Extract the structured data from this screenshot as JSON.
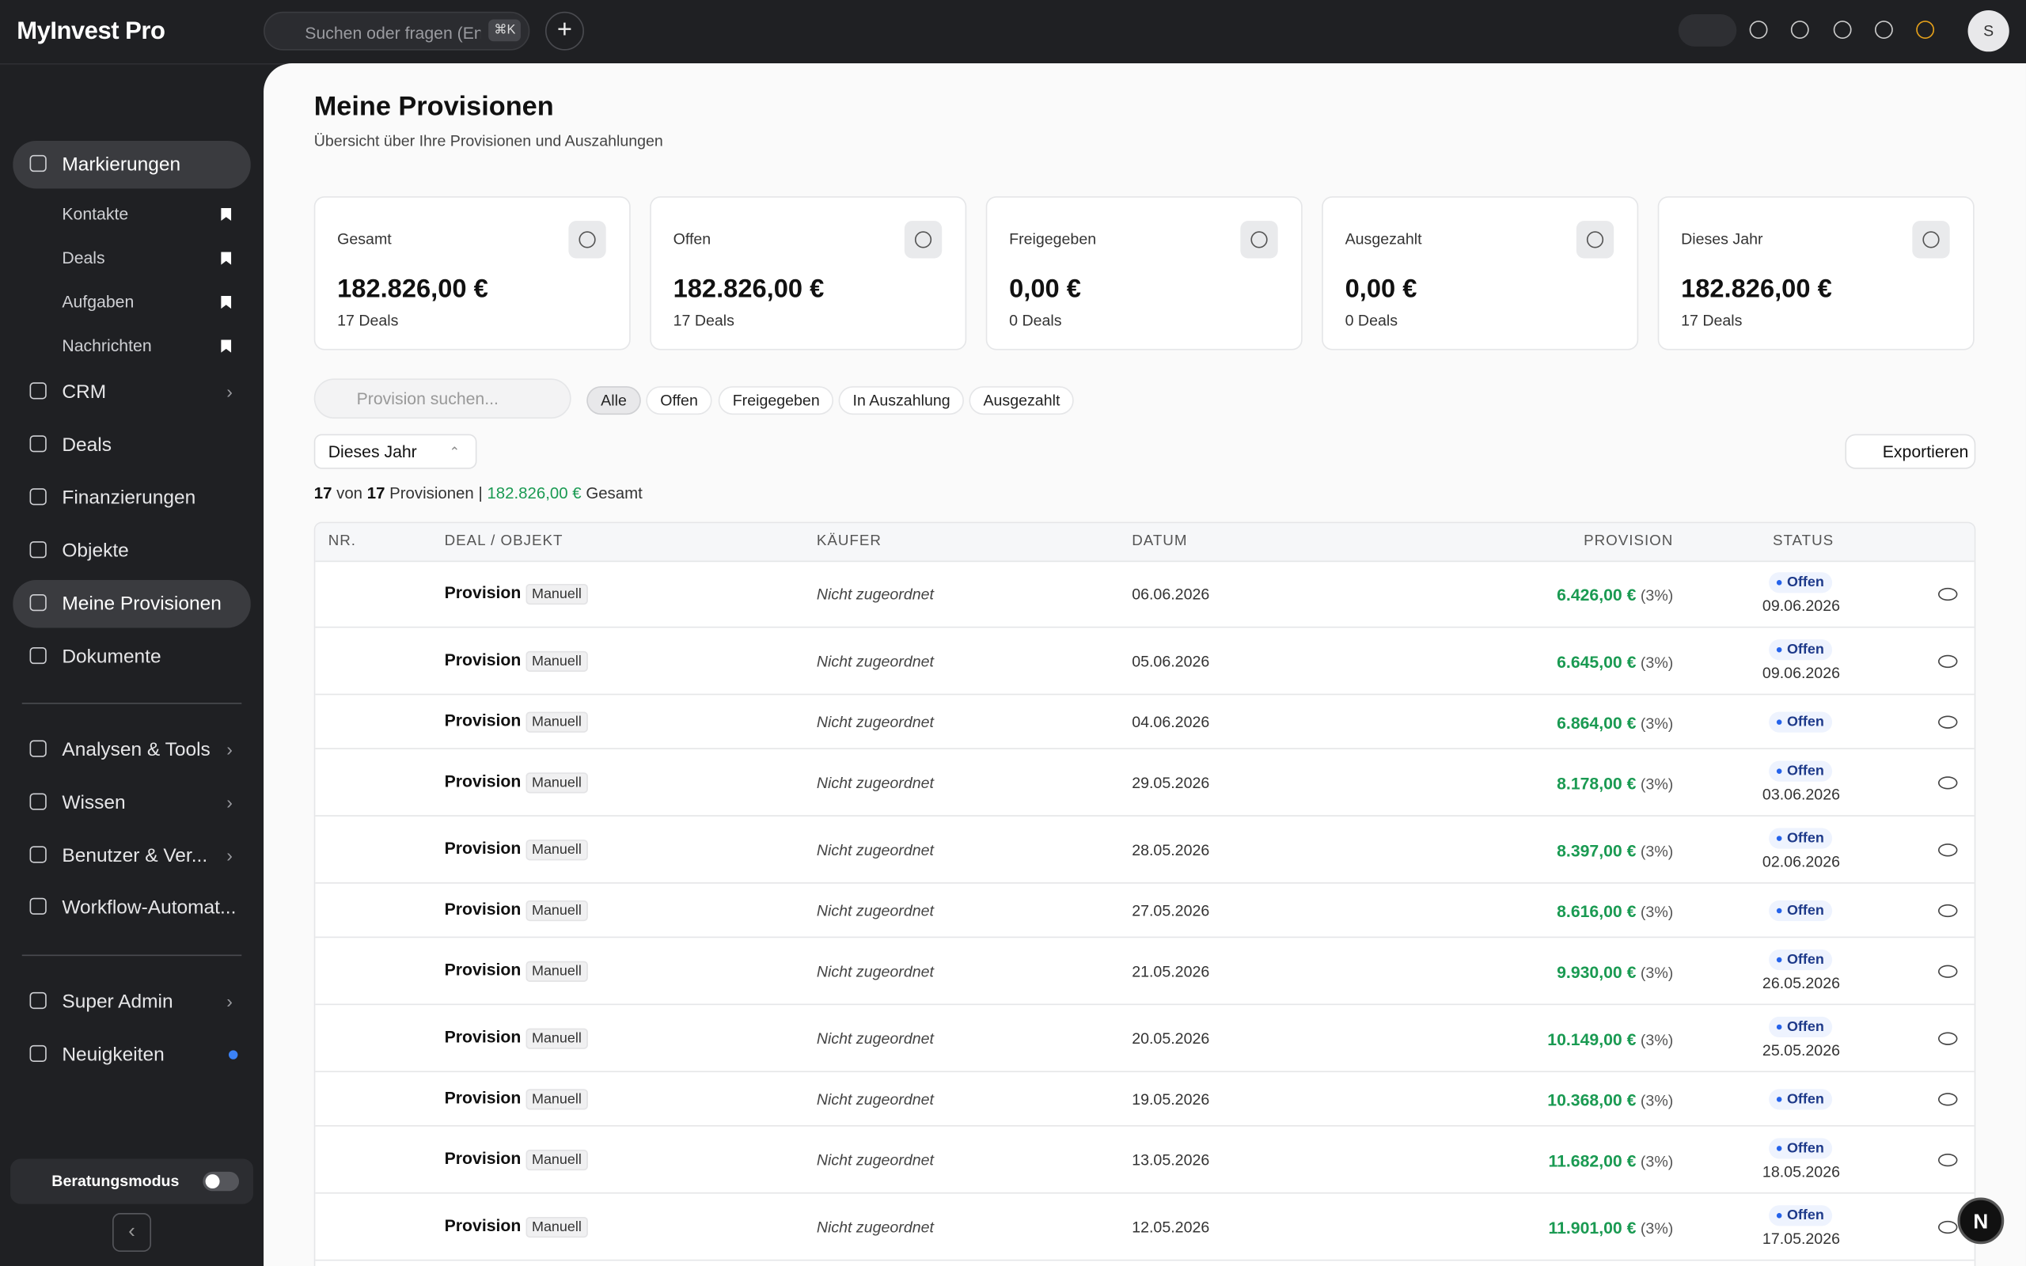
{
  "header": {
    "logo": "MyInvest Pro",
    "search_placeholder": "Suchen oder fragen (Ent",
    "shortcut": "⌘K",
    "avatar": "S"
  },
  "sidebar": {
    "items": [
      {
        "label": "Markierungen",
        "active": true
      },
      {
        "label": "Kontakte",
        "sub": true
      },
      {
        "label": "Deals",
        "sub": true
      },
      {
        "label": "Aufgaben",
        "sub": true
      },
      {
        "label": "Nachrichten",
        "sub": true
      },
      {
        "label": "CRM",
        "chevron": true
      },
      {
        "label": "Deals"
      },
      {
        "label": "Finanzierungen"
      },
      {
        "label": "Objekte"
      },
      {
        "label": "Meine Provisionen",
        "active": true
      },
      {
        "label": "Dokumente"
      },
      {
        "label": "Analysen & Tools",
        "chevron": true
      },
      {
        "label": "Wissen",
        "chevron": true
      },
      {
        "label": "Benutzer & Ver...",
        "chevron": true
      },
      {
        "label": "Workflow-Automat..."
      },
      {
        "label": "Super Admin",
        "chevron": true
      },
      {
        "label": "Neuigkeiten",
        "dot": true
      }
    ],
    "mode_label": "Beratungsmodus"
  },
  "page": {
    "title": "Meine Provisionen",
    "subtitle": "Übersicht über Ihre Provisionen und Auszahlungen"
  },
  "stats": [
    {
      "label": "Gesamt",
      "value": "182.826,00 €",
      "sub": "17 Deals"
    },
    {
      "label": "Offen",
      "value": "182.826,00 €",
      "sub": "17 Deals"
    },
    {
      "label": "Freigegeben",
      "value": "0,00 €",
      "sub": "0 Deals"
    },
    {
      "label": "Ausgezahlt",
      "value": "0,00 €",
      "sub": "0 Deals"
    },
    {
      "label": "Dieses Jahr",
      "value": "182.826,00 €",
      "sub": "17 Deals"
    }
  ],
  "filters": {
    "search_placeholder": "Provision suchen...",
    "chips": [
      "Alle",
      "Offen",
      "Freigegeben",
      "In Auszahlung",
      "Ausgezahlt"
    ],
    "period": "Dieses Jahr",
    "export": "Exportieren"
  },
  "summary": {
    "count": "17",
    "of": "von",
    "total": "17",
    "unit": "Provisionen",
    "sep": "|",
    "sum": "182.826,00 €",
    "sum_label": "Gesamt"
  },
  "table": {
    "columns": [
      "NR.",
      "DEAL / OBJEKT",
      "KÄUFER",
      "DATUM",
      "PROVISION",
      "STATUS"
    ],
    "rows": [
      {
        "deal": "Provision",
        "tag": "Manuell",
        "buyer": "Nicht zugeordnet",
        "date": "06.06.2026",
        "amount": "6.426,00 €",
        "pct": "(3%)",
        "status": "Offen",
        "status_date": "09.06.2026"
      },
      {
        "deal": "Provision",
        "tag": "Manuell",
        "buyer": "Nicht zugeordnet",
        "date": "05.06.2026",
        "amount": "6.645,00 €",
        "pct": "(3%)",
        "status": "Offen",
        "status_date": "09.06.2026"
      },
      {
        "deal": "Provision",
        "tag": "Manuell",
        "buyer": "Nicht zugeordnet",
        "date": "04.06.2026",
        "amount": "6.864,00 €",
        "pct": "(3%)",
        "status": "Offen"
      },
      {
        "deal": "Provision",
        "tag": "Manuell",
        "buyer": "Nicht zugeordnet",
        "date": "29.05.2026",
        "amount": "8.178,00 €",
        "pct": "(3%)",
        "status": "Offen",
        "status_date": "03.06.2026"
      },
      {
        "deal": "Provision",
        "tag": "Manuell",
        "buyer": "Nicht zugeordnet",
        "date": "28.05.2026",
        "amount": "8.397,00 €",
        "pct": "(3%)",
        "status": "Offen",
        "status_date": "02.06.2026"
      },
      {
        "deal": "Provision",
        "tag": "Manuell",
        "buyer": "Nicht zugeordnet",
        "date": "27.05.2026",
        "amount": "8.616,00 €",
        "pct": "(3%)",
        "status": "Offen"
      },
      {
        "deal": "Provision",
        "tag": "Manuell",
        "buyer": "Nicht zugeordnet",
        "date": "21.05.2026",
        "amount": "9.930,00 €",
        "pct": "(3%)",
        "status": "Offen",
        "status_date": "26.05.2026"
      },
      {
        "deal": "Provision",
        "tag": "Manuell",
        "buyer": "Nicht zugeordnet",
        "date": "20.05.2026",
        "amount": "10.149,00 €",
        "pct": "(3%)",
        "status": "Offen",
        "status_date": "25.05.2026"
      },
      {
        "deal": "Provision",
        "tag": "Manuell",
        "buyer": "Nicht zugeordnet",
        "date": "19.05.2026",
        "amount": "10.368,00 €",
        "pct": "(3%)",
        "status": "Offen"
      },
      {
        "deal": "Provision",
        "tag": "Manuell",
        "buyer": "Nicht zugeordnet",
        "date": "13.05.2026",
        "amount": "11.682,00 €",
        "pct": "(3%)",
        "status": "Offen",
        "status_date": "18.05.2026"
      },
      {
        "deal": "Provision",
        "tag": "Manuell",
        "buyer": "Nicht zugeordnet",
        "date": "12.05.2026",
        "amount": "11.901,00 €",
        "pct": "(3%)",
        "status": "Offen",
        "status_date": "17.05.2026"
      }
    ]
  }
}
